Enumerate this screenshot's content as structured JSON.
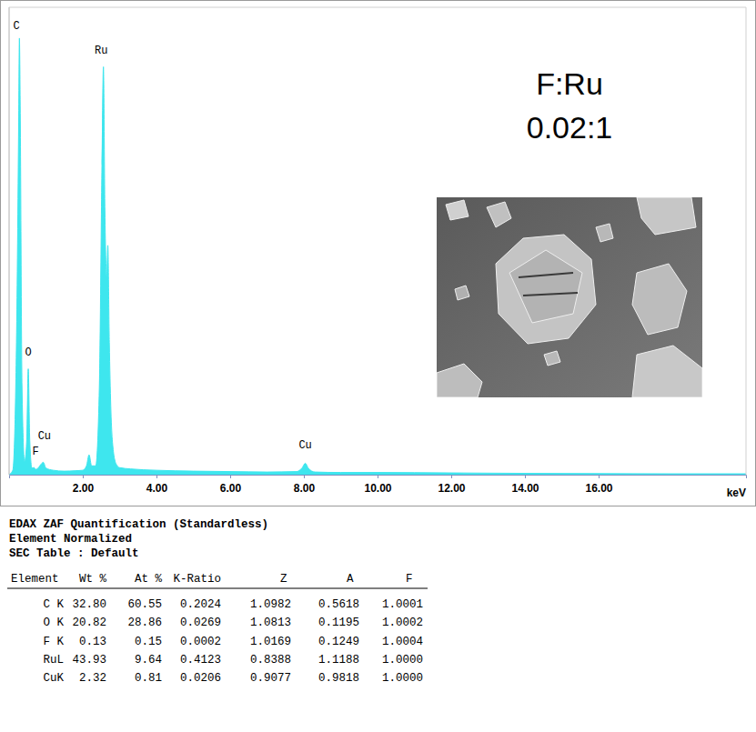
{
  "chart_data": {
    "type": "area",
    "title": "F:Ru",
    "subtitle": "0.02:1",
    "x_label": "keV",
    "x": [
      0,
      0.1,
      0.2,
      0.26,
      0.28,
      0.3,
      0.35,
      0.42,
      0.48,
      0.52,
      0.56,
      0.62,
      0.68,
      0.72,
      0.8,
      0.85,
      0.93,
      1.0,
      1.2,
      1.5,
      1.8,
      2.0,
      2.1,
      2.17,
      2.24,
      2.35,
      2.45,
      2.52,
      2.56,
      2.6,
      2.65,
      2.68,
      2.72,
      2.8,
      2.9,
      3.0,
      3.3,
      4,
      5,
      6,
      7,
      7.8,
      7.95,
      8.04,
      8.12,
      8.3,
      9,
      10,
      12,
      14,
      16,
      18,
      20
    ],
    "values": [
      0,
      1,
      30,
      80,
      99,
      85,
      20,
      3,
      8,
      24,
      8,
      1.5,
      1.6,
      1.2,
      1.6,
      2.2,
      2.8,
      1.5,
      1.0,
      0.8,
      0.9,
      1.0,
      2,
      4.5,
      2,
      2,
      20,
      70,
      92.5,
      60,
      45,
      52,
      30,
      8,
      2.5,
      1.6,
      1.3,
      1.0,
      0.8,
      0.7,
      0.6,
      0.7,
      1.5,
      2.6,
      1.5,
      0.6,
      0.5,
      0.5,
      0.4,
      0.3,
      0.25,
      0.2,
      0.2
    ],
    "color": "#3ee6ee",
    "xlim": [
      0,
      20
    ],
    "ylim": [
      0,
      106
    ],
    "xticks": [
      {
        "value": 2,
        "label": "2.00"
      },
      {
        "value": 4,
        "label": "4.00"
      },
      {
        "value": 6,
        "label": "6.00"
      },
      {
        "value": 8,
        "label": "8.00"
      },
      {
        "value": 10,
        "label": "10.00"
      },
      {
        "value": 12,
        "label": "12.00"
      },
      {
        "value": 14,
        "label": "14.00"
      },
      {
        "value": 16,
        "label": "16.00"
      }
    ],
    "tick_labels": "x",
    "grid": false,
    "annotations": [
      {
        "text": "C",
        "x": 0.2,
        "y": 101
      },
      {
        "text": "Ru",
        "x": 2.5,
        "y": 95.5
      },
      {
        "text": "O",
        "x": 0.52,
        "y": 27
      },
      {
        "text": "F",
        "x": 0.72,
        "y": 4.5
      },
      {
        "text": "Cu",
        "x": 0.96,
        "y": 8
      },
      {
        "text": "Cu",
        "x": 8.04,
        "y": 6
      }
    ]
  },
  "table": {
    "heading": [
      "EDAX ZAF Quantification (Standardless)",
      "Element Normalized",
      "SEC Table : Default"
    ],
    "columns": [
      "Element",
      "Wt %",
      "At %",
      "K-Ratio",
      "Z",
      "A",
      "F"
    ],
    "rows": [
      [
        "C K",
        "32.80",
        "60.55",
        "0.2024",
        "1.0982",
        "0.5618",
        "1.0001"
      ],
      [
        "O K",
        "20.82",
        "28.86",
        "0.0269",
        "1.0813",
        "0.1195",
        "1.0002"
      ],
      [
        "F K",
        "0.13",
        "0.15",
        "0.0002",
        "1.0169",
        "0.1249",
        "1.0004"
      ],
      [
        "RuL",
        "43.93",
        "9.64",
        "0.4123",
        "0.8388",
        "1.1188",
        "1.0000"
      ],
      [
        "CuK",
        "2.32",
        "0.81",
        "0.0206",
        "0.9077",
        "0.9818",
        "1.0000"
      ]
    ]
  }
}
